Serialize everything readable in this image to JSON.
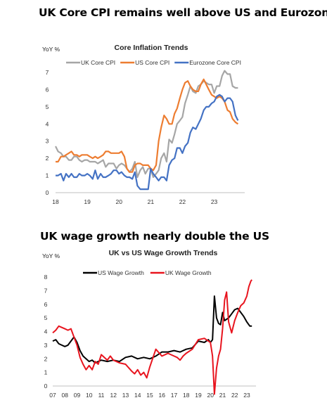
{
  "headlines": {
    "top": "UK Core CPI remains well above US and Eurozone",
    "bottom": "UK wage growth nearly double the US"
  },
  "chart_data": [
    {
      "type": "line",
      "title": "Core Inflation Trends",
      "ylabel": "YoY %",
      "xlabel": "",
      "xlim": [
        2018.0,
        2023.83
      ],
      "ylim": [
        0,
        7
      ],
      "xticks": [
        18,
        19,
        20,
        21,
        22,
        23
      ],
      "yticks": [
        0,
        1,
        2,
        3,
        4,
        5,
        6,
        7
      ],
      "grid": false,
      "legend": "top",
      "series": [
        {
          "name": "UK Core CPI",
          "color": "#a6a6a6",
          "x": [
            2018.0,
            2018.08,
            2018.17,
            2018.25,
            2018.33,
            2018.42,
            2018.5,
            2018.58,
            2018.67,
            2018.75,
            2018.83,
            2018.92,
            2019.0,
            2019.08,
            2019.17,
            2019.25,
            2019.33,
            2019.42,
            2019.5,
            2019.58,
            2019.67,
            2019.75,
            2019.83,
            2019.92,
            2020.0,
            2020.08,
            2020.17,
            2020.25,
            2020.33,
            2020.42,
            2020.5,
            2020.58,
            2020.67,
            2020.75,
            2020.83,
            2020.92,
            2021.0,
            2021.08,
            2021.17,
            2021.25,
            2021.33,
            2021.42,
            2021.5,
            2021.58,
            2021.67,
            2021.75,
            2021.83,
            2021.92,
            2022.0,
            2022.08,
            2022.17,
            2022.25,
            2022.33,
            2022.42,
            2022.5,
            2022.58,
            2022.67,
            2022.75,
            2022.83,
            2022.92,
            2023.0,
            2023.08,
            2023.17,
            2023.25,
            2023.33,
            2023.42,
            2023.5,
            2023.58,
            2023.67,
            2023.75
          ],
          "values": [
            2.7,
            2.4,
            2.3,
            2.1,
            2.1,
            1.9,
            1.9,
            2.1,
            2.1,
            1.9,
            1.8,
            1.9,
            1.9,
            1.8,
            1.8,
            1.8,
            1.7,
            1.8,
            1.9,
            1.5,
            1.7,
            1.7,
            1.7,
            1.4,
            1.6,
            1.7,
            1.6,
            1.4,
            1.2,
            1.4,
            1.8,
            0.9,
            1.3,
            1.5,
            1.1,
            1.4,
            1.4,
            0.9,
            1.1,
            1.3,
            2.0,
            2.3,
            1.8,
            3.1,
            2.9,
            3.4,
            4.0,
            4.2,
            4.4,
            5.2,
            5.7,
            6.2,
            5.9,
            5.8,
            6.2,
            6.3,
            6.5,
            6.4,
            6.3,
            6.3,
            5.8,
            6.2,
            6.2,
            6.8,
            7.1,
            6.9,
            6.9,
            6.2,
            6.1,
            6.1
          ]
        },
        {
          "name": "US Core CPI",
          "color": "#ed7d31",
          "x": [
            2018.0,
            2018.08,
            2018.17,
            2018.25,
            2018.33,
            2018.42,
            2018.5,
            2018.58,
            2018.67,
            2018.75,
            2018.83,
            2018.92,
            2019.0,
            2019.08,
            2019.17,
            2019.25,
            2019.33,
            2019.42,
            2019.5,
            2019.58,
            2019.67,
            2019.75,
            2019.83,
            2019.92,
            2020.0,
            2020.08,
            2020.17,
            2020.25,
            2020.33,
            2020.42,
            2020.5,
            2020.58,
            2020.67,
            2020.75,
            2020.83,
            2020.92,
            2021.0,
            2021.08,
            2021.17,
            2021.25,
            2021.33,
            2021.42,
            2021.5,
            2021.58,
            2021.67,
            2021.75,
            2021.83,
            2021.92,
            2022.0,
            2022.08,
            2022.17,
            2022.25,
            2022.33,
            2022.42,
            2022.5,
            2022.58,
            2022.67,
            2022.75,
            2022.83,
            2022.92,
            2023.0,
            2023.08,
            2023.17,
            2023.25,
            2023.33,
            2023.42,
            2023.5,
            2023.58,
            2023.67,
            2023.75
          ],
          "values": [
            1.8,
            1.8,
            2.1,
            2.1,
            2.2,
            2.3,
            2.4,
            2.2,
            2.2,
            2.1,
            2.2,
            2.2,
            2.2,
            2.1,
            2.0,
            2.1,
            2.0,
            2.1,
            2.2,
            2.4,
            2.4,
            2.3,
            2.3,
            2.3,
            2.3,
            2.4,
            2.1,
            1.4,
            1.2,
            1.2,
            1.6,
            1.7,
            1.7,
            1.6,
            1.6,
            1.6,
            1.4,
            1.3,
            1.6,
            3.0,
            3.8,
            4.5,
            4.3,
            4.0,
            4.0,
            4.6,
            4.9,
            5.5,
            6.0,
            6.4,
            6.5,
            6.2,
            6.0,
            5.9,
            5.9,
            6.3,
            6.6,
            6.3,
            6.0,
            5.7,
            5.6,
            5.5,
            5.6,
            5.5,
            5.3,
            4.8,
            4.7,
            4.3,
            4.1,
            4.0
          ]
        },
        {
          "name": "Eurozone Core CPI",
          "color": "#4472c4",
          "x": [
            2018.0,
            2018.08,
            2018.17,
            2018.25,
            2018.33,
            2018.42,
            2018.5,
            2018.58,
            2018.67,
            2018.75,
            2018.83,
            2018.92,
            2019.0,
            2019.08,
            2019.17,
            2019.25,
            2019.33,
            2019.42,
            2019.5,
            2019.58,
            2019.67,
            2019.75,
            2019.83,
            2019.92,
            2020.0,
            2020.08,
            2020.17,
            2020.25,
            2020.33,
            2020.42,
            2020.5,
            2020.58,
            2020.67,
            2020.75,
            2020.83,
            2020.92,
            2021.0,
            2021.08,
            2021.17,
            2021.25,
            2021.33,
            2021.42,
            2021.5,
            2021.58,
            2021.67,
            2021.75,
            2021.83,
            2021.92,
            2022.0,
            2022.08,
            2022.17,
            2022.25,
            2022.33,
            2022.42,
            2022.5,
            2022.58,
            2022.67,
            2022.75,
            2022.83,
            2022.92,
            2023.0,
            2023.08,
            2023.17,
            2023.25,
            2023.33,
            2023.42,
            2023.5,
            2023.58,
            2023.67,
            2023.75
          ],
          "values": [
            1.0,
            1.0,
            1.1,
            0.7,
            1.1,
            0.9,
            1.1,
            0.9,
            0.9,
            1.1,
            1.0,
            1.0,
            1.1,
            1.0,
            0.8,
            1.3,
            0.8,
            1.1,
            0.9,
            0.9,
            1.0,
            1.1,
            1.3,
            1.3,
            1.1,
            1.2,
            1.0,
            0.9,
            0.9,
            0.8,
            1.2,
            0.4,
            0.2,
            0.2,
            0.2,
            0.2,
            1.4,
            1.1,
            0.9,
            0.7,
            0.9,
            0.9,
            0.7,
            1.6,
            1.9,
            2.0,
            2.6,
            2.6,
            2.3,
            2.7,
            2.9,
            3.5,
            3.8,
            3.7,
            4.0,
            4.3,
            4.8,
            5.0,
            5.0,
            5.2,
            5.3,
            5.6,
            5.7,
            5.6,
            5.3,
            5.5,
            5.5,
            5.3,
            4.5,
            4.2
          ]
        }
      ]
    },
    {
      "type": "line",
      "title": "UK vs US Wage Growth Trends",
      "ylabel": "YoY %",
      "xlabel": "",
      "xlim": [
        2007.0,
        2023.58
      ],
      "ylim": [
        0,
        8
      ],
      "xticks": [
        "07",
        "08",
        "09",
        "10",
        "11",
        "12",
        "13",
        "14",
        "15",
        "16",
        "17",
        "18",
        "19",
        "20",
        "21",
        "22",
        "23"
      ],
      "yticks": [
        0,
        1,
        2,
        3,
        4,
        5,
        6,
        7,
        8
      ],
      "grid": false,
      "legend": "top",
      "series": [
        {
          "name": "US Wage Growth",
          "color": "#000000",
          "x": [
            2007.0,
            2007.25,
            2007.5,
            2007.75,
            2008.0,
            2008.25,
            2008.5,
            2008.75,
            2009.0,
            2009.25,
            2009.5,
            2009.75,
            2010.0,
            2010.25,
            2010.5,
            2010.75,
            2011.0,
            2011.5,
            2012.0,
            2012.5,
            2013.0,
            2013.5,
            2014.0,
            2014.5,
            2015.0,
            2015.5,
            2016.0,
            2016.5,
            2017.0,
            2017.5,
            2018.0,
            2018.5,
            2019.0,
            2019.5,
            2019.83,
            2020.0,
            2020.17,
            2020.33,
            2020.5,
            2020.67,
            2020.83,
            2021.0,
            2021.17,
            2021.33,
            2021.5,
            2021.75,
            2022.0,
            2022.25,
            2022.5,
            2022.75,
            2023.0,
            2023.25,
            2023.42
          ],
          "values": [
            3.3,
            3.4,
            3.1,
            3.0,
            2.9,
            3.0,
            3.3,
            3.6,
            3.2,
            2.6,
            2.2,
            2.0,
            1.8,
            1.9,
            1.7,
            1.8,
            1.9,
            1.8,
            1.9,
            1.8,
            2.1,
            2.2,
            2.0,
            2.1,
            2.0,
            2.2,
            2.5,
            2.5,
            2.6,
            2.5,
            2.7,
            2.8,
            3.3,
            3.2,
            3.4,
            3.2,
            3.4,
            6.6,
            5.0,
            4.6,
            4.5,
            5.4,
            4.8,
            4.9,
            5.0,
            5.3,
            5.6,
            5.7,
            5.4,
            5.1,
            4.7,
            4.4,
            4.4
          ]
        },
        {
          "name": "UK Wage Growth",
          "color": "#e8141e",
          "x": [
            2007.0,
            2007.25,
            2007.5,
            2007.75,
            2008.0,
            2008.25,
            2008.5,
            2008.75,
            2009.0,
            2009.25,
            2009.5,
            2009.75,
            2010.0,
            2010.25,
            2010.5,
            2010.75,
            2011.0,
            2011.25,
            2011.5,
            2011.75,
            2012.0,
            2012.5,
            2013.0,
            2013.5,
            2013.75,
            2014.0,
            2014.25,
            2014.5,
            2014.75,
            2015.0,
            2015.5,
            2016.0,
            2016.5,
            2017.0,
            2017.25,
            2017.5,
            2017.75,
            2018.0,
            2018.5,
            2019.0,
            2019.5,
            2019.83,
            2020.0,
            2020.17,
            2020.33,
            2020.5,
            2020.67,
            2020.83,
            2021.0,
            2021.17,
            2021.33,
            2021.5,
            2021.75,
            2022.0,
            2022.25,
            2022.5,
            2022.75,
            2023.0,
            2023.17,
            2023.33,
            2023.42
          ],
          "values": [
            3.9,
            4.1,
            4.4,
            4.3,
            4.2,
            4.1,
            4.2,
            3.6,
            3.0,
            2.1,
            1.6,
            1.2,
            1.5,
            1.2,
            1.8,
            1.6,
            2.3,
            2.1,
            1.9,
            2.2,
            1.9,
            1.7,
            1.6,
            1.1,
            0.9,
            1.2,
            0.8,
            1.0,
            0.6,
            1.4,
            2.7,
            2.2,
            2.4,
            2.2,
            2.1,
            1.9,
            2.2,
            2.4,
            2.7,
            3.4,
            3.5,
            3.3,
            3.2,
            2.2,
            -0.6,
            1.3,
            2.2,
            2.7,
            4.2,
            6.3,
            6.9,
            4.7,
            3.9,
            4.8,
            5.4,
            5.9,
            6.1,
            6.6,
            7.3,
            7.7,
            7.8
          ]
        }
      ]
    }
  ]
}
